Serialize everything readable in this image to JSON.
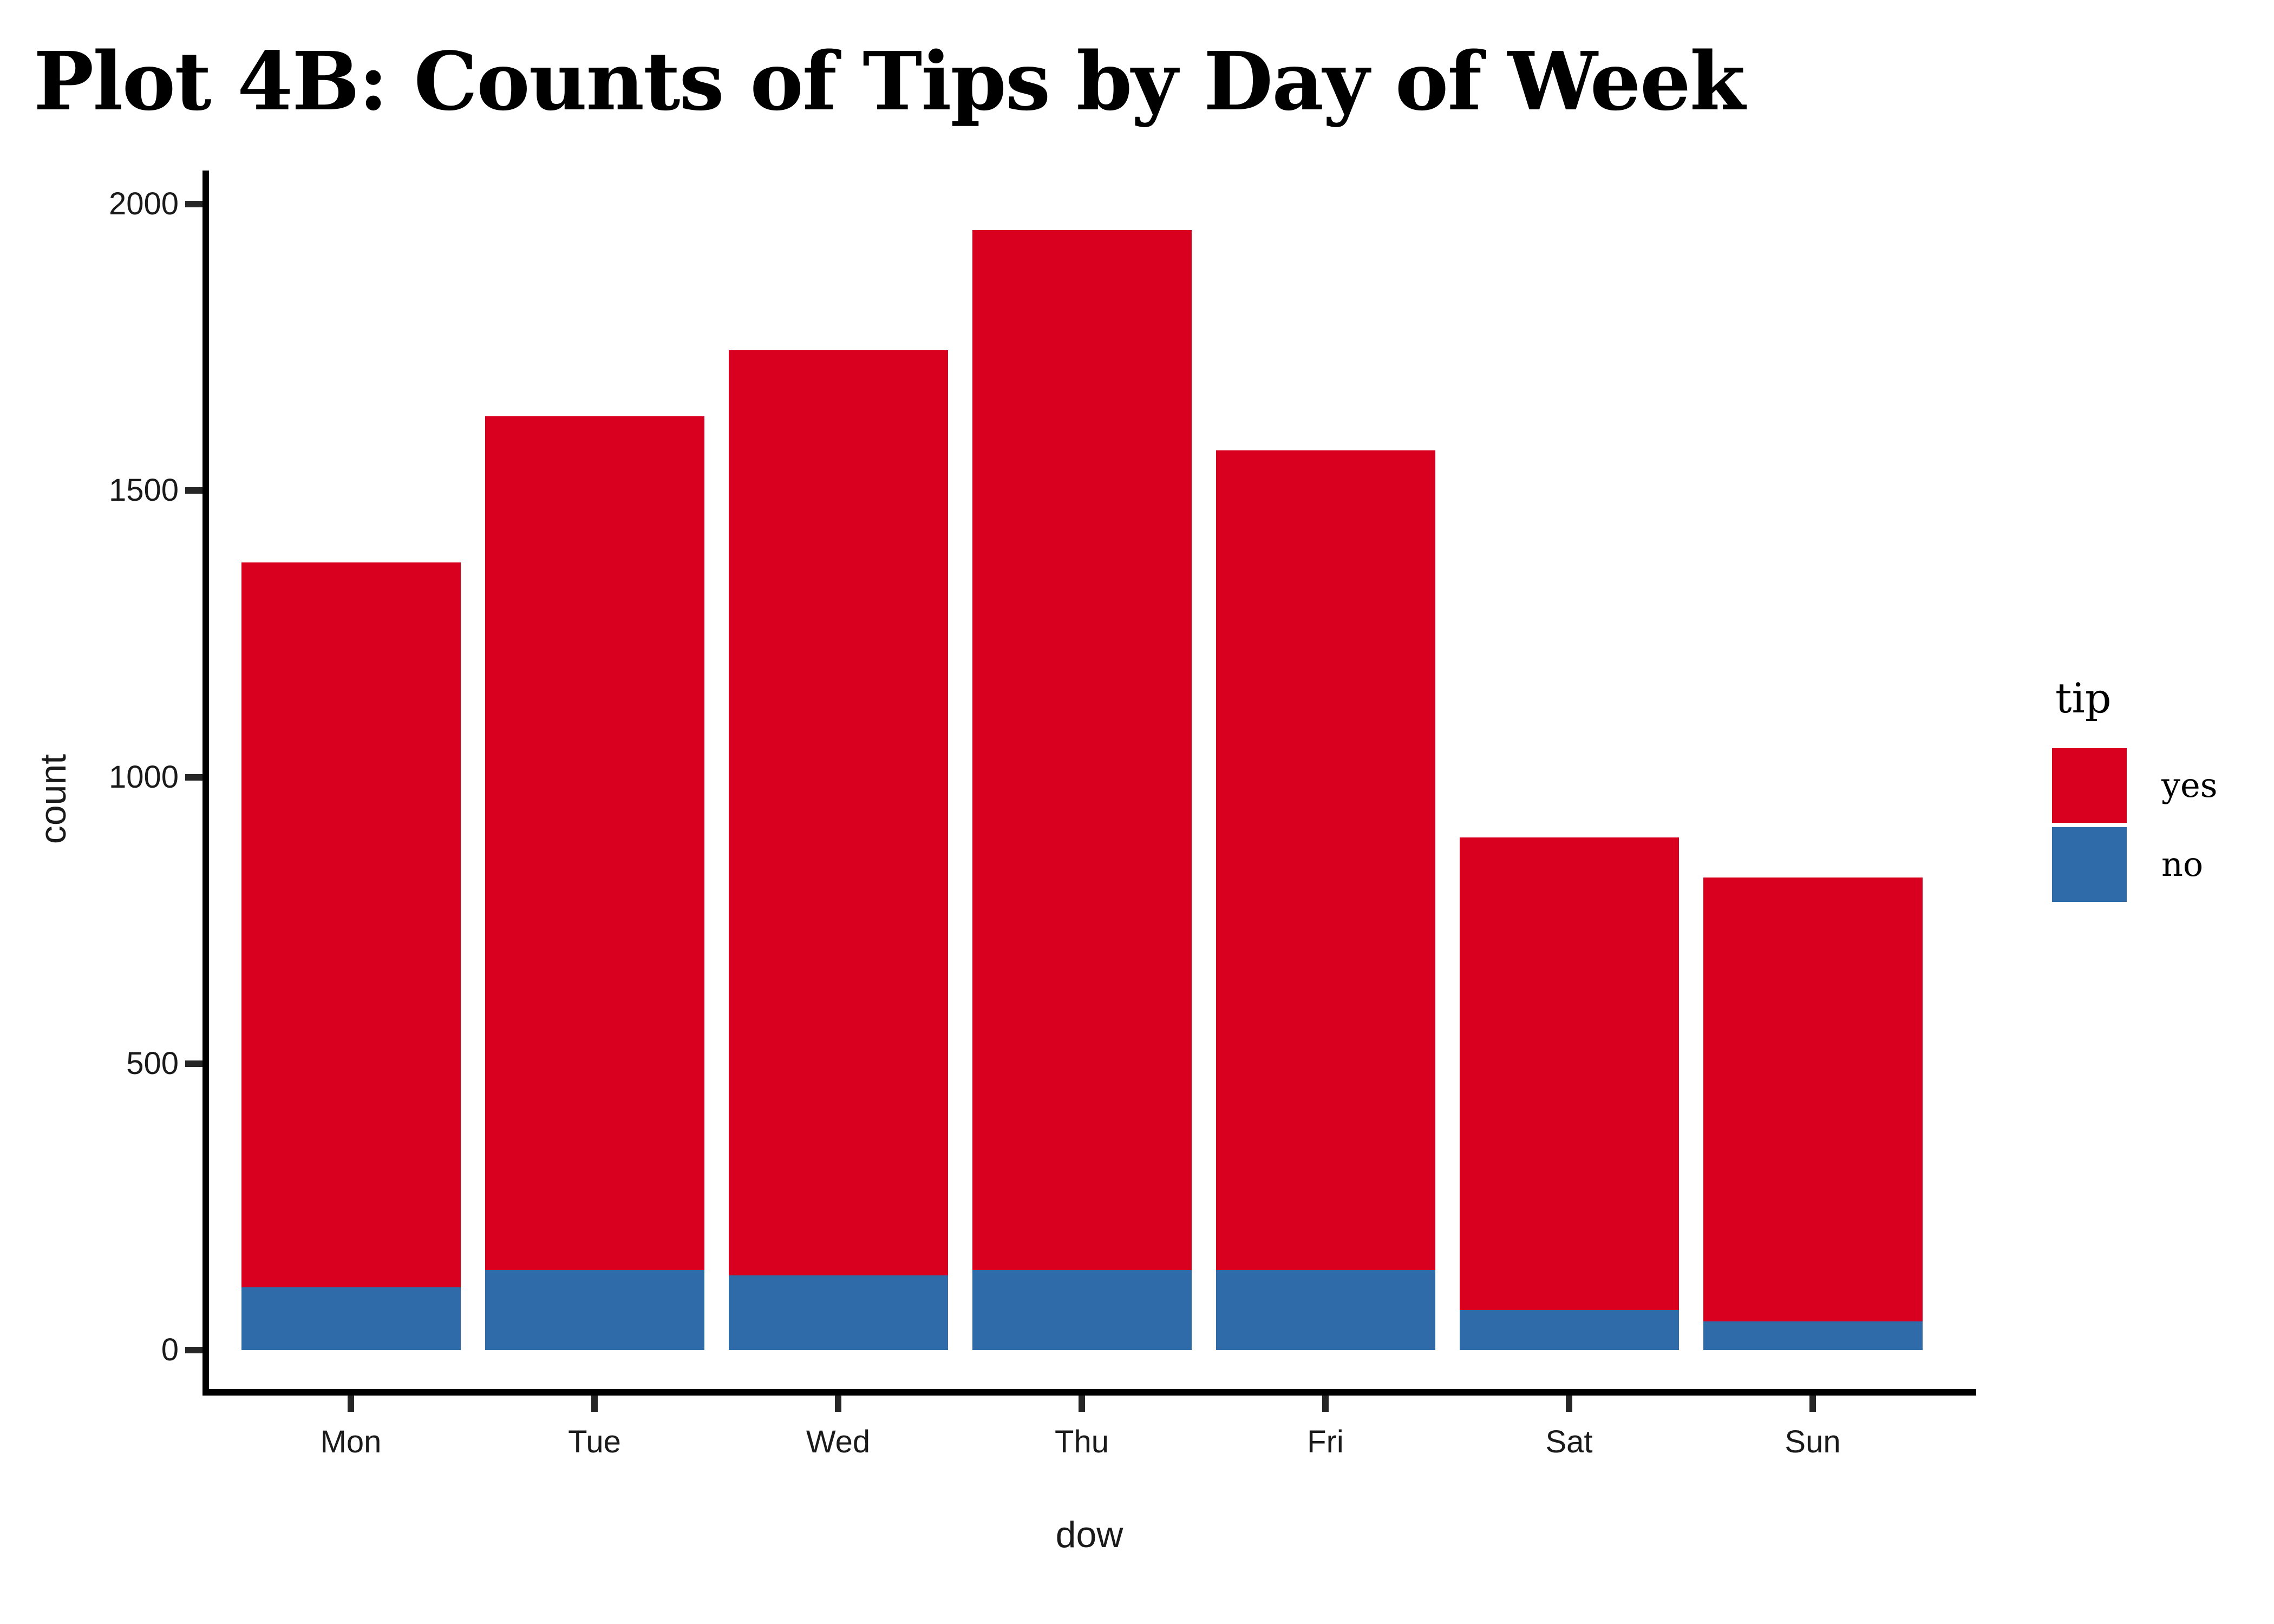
{
  "title": "Plot 4B: Counts of Tips by Day of Week",
  "chart_data": {
    "type": "bar",
    "stacked": true,
    "title": "Plot 4B: Counts of Tips by Day of Week",
    "xlabel": "dow",
    "ylabel": "count",
    "categories": [
      "Mon",
      "Tue",
      "Wed",
      "Thu",
      "Fri",
      "Sat",
      "Sun"
    ],
    "series": [
      {
        "name": "no",
        "color": "#2E6BA8",
        "values": [
          110,
          140,
          130,
          140,
          140,
          70,
          50
        ]
      },
      {
        "name": "yes",
        "color": "#D8001E",
        "values": [
          1265,
          1490,
          1615,
          1815,
          1430,
          825,
          775
        ]
      }
    ],
    "totals": [
      1375,
      1630,
      1745,
      1955,
      1570,
      895,
      825
    ],
    "stack_order_bottom_to_top": [
      "no",
      "yes"
    ],
    "ylim": [
      0,
      2000
    ],
    "yticks": [
      0,
      500,
      1000,
      1500,
      2000
    ],
    "grid": false,
    "axis_color": "#000000",
    "legend": {
      "title": "tip",
      "position": "right",
      "entries": [
        {
          "label": "yes",
          "color": "#D8001E"
        },
        {
          "label": "no",
          "color": "#2E6BA8"
        }
      ]
    }
  }
}
